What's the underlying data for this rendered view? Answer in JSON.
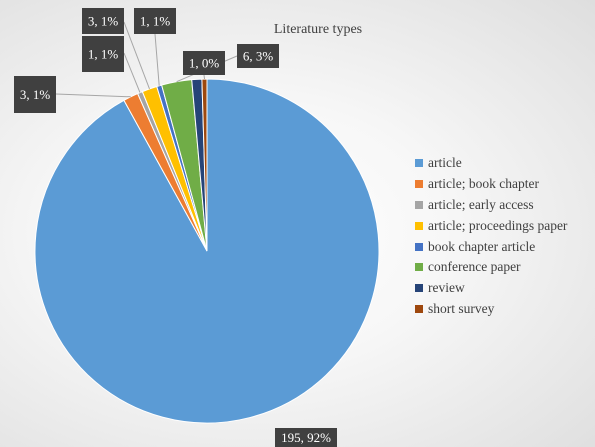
{
  "chart_data": {
    "type": "pie",
    "title": "Literature types",
    "start_angle_deg": 0,
    "direction": "clockwise",
    "legend_position": "right",
    "slices": [
      {
        "name": "article",
        "value": 195,
        "label": "195, 92%",
        "color": "#5B9BD5"
      },
      {
        "name": "article; book chapter",
        "value": 3,
        "label": "3, 1%",
        "color": "#ED7D31"
      },
      {
        "name": "article; early access",
        "value": 1,
        "label": "1, 1%",
        "color": "#A5A5A5"
      },
      {
        "name": "article; proceedings paper",
        "value": 3,
        "label": "3, 1%",
        "color": "#FFC000"
      },
      {
        "name": "book chapter article",
        "value": 1,
        "label": "1, 1%",
        "color": "#4472C4"
      },
      {
        "name": "conference paper",
        "value": 6,
        "label": "6, 3%",
        "color": "#70AD47"
      },
      {
        "name": "review",
        "value": 2,
        "label": "",
        "color": "#264478"
      },
      {
        "name": "short survey",
        "value": 1,
        "label": "1, 0%",
        "color": "#9E480E"
      }
    ],
    "label_style": {
      "background": "#404040",
      "text_color": "#ffffff"
    }
  }
}
